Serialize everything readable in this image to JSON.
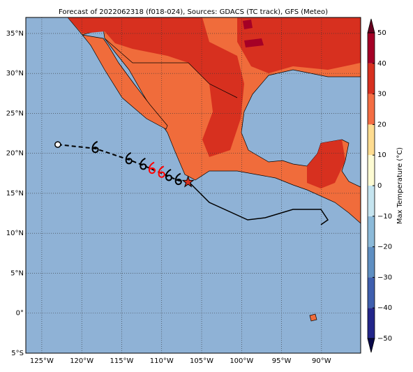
{
  "map": {
    "title": "Forecast of 2022062318 (f018-024), Sources: GDACS (TC track), GFS (Meteo)",
    "lonlim": [
      -127,
      -85.1
    ],
    "latlim": [
      -5,
      37
    ],
    "lonticks": [
      {
        "value": -125,
        "label": "125°W"
      },
      {
        "value": -120,
        "label": "120°W"
      },
      {
        "value": -115,
        "label": "115°W"
      },
      {
        "value": -110,
        "label": "110°W"
      },
      {
        "value": -105,
        "label": "105°W"
      },
      {
        "value": -100,
        "label": "100°W"
      },
      {
        "value": -95,
        "label": "95°W"
      },
      {
        "value": -90,
        "label": "90°W"
      }
    ],
    "latticks": [
      {
        "value": -5,
        "label": "5°S"
      },
      {
        "value": 0,
        "label": "0°"
      },
      {
        "value": 5,
        "label": "5°N"
      },
      {
        "value": 10,
        "label": "10°N"
      },
      {
        "value": 15,
        "label": "15°N"
      },
      {
        "value": 20,
        "label": "20°N"
      },
      {
        "value": 25,
        "label": "25°N"
      },
      {
        "value": 30,
        "label": "30°N"
      },
      {
        "value": 35,
        "label": "35°N"
      }
    ],
    "colorbar": {
      "label": "Max Temperature (°C)",
      "lim": [
        -50,
        50
      ],
      "ticks": [
        50,
        40,
        30,
        20,
        10,
        0,
        {
          "value": -10,
          "label": "−10"
        },
        {
          "value": -20,
          "label": "−20"
        },
        {
          "value": -30,
          "label": "−30"
        },
        {
          "value": -40,
          "label": "−40"
        },
        {
          "value": -50,
          "label": "−50"
        }
      ],
      "colors": [
        "#23268a",
        "#3f5fae",
        "#5f8fc2",
        "#8cbad9",
        "#c5e4ef",
        "#fdfbd3",
        "#fedc90",
        "#f46d43",
        "#d7301f",
        "#a50026"
      ]
    },
    "track": [
      {
        "lon": -123.0,
        "lat": 21.1,
        "color": "#000000"
      },
      {
        "lon": -118.3,
        "lat": 20.6,
        "color": "#000000"
      },
      {
        "lon": -114.1,
        "lat": 19.2,
        "color": "#000000"
      },
      {
        "lon": -112.3,
        "lat": 18.5,
        "color": "#000000"
      },
      {
        "lon": -111.2,
        "lat": 18.0,
        "color": "#ff0000"
      },
      {
        "lon": -110.0,
        "lat": 17.5,
        "color": "#ff0000"
      },
      {
        "lon": -109.1,
        "lat": 17.1,
        "color": "#000000"
      },
      {
        "lon": -107.9,
        "lat": 16.6,
        "color": "#000000"
      },
      {
        "lon": -106.7,
        "lat": 16.4,
        "color": "#d7301f"
      }
    ]
  }
}
